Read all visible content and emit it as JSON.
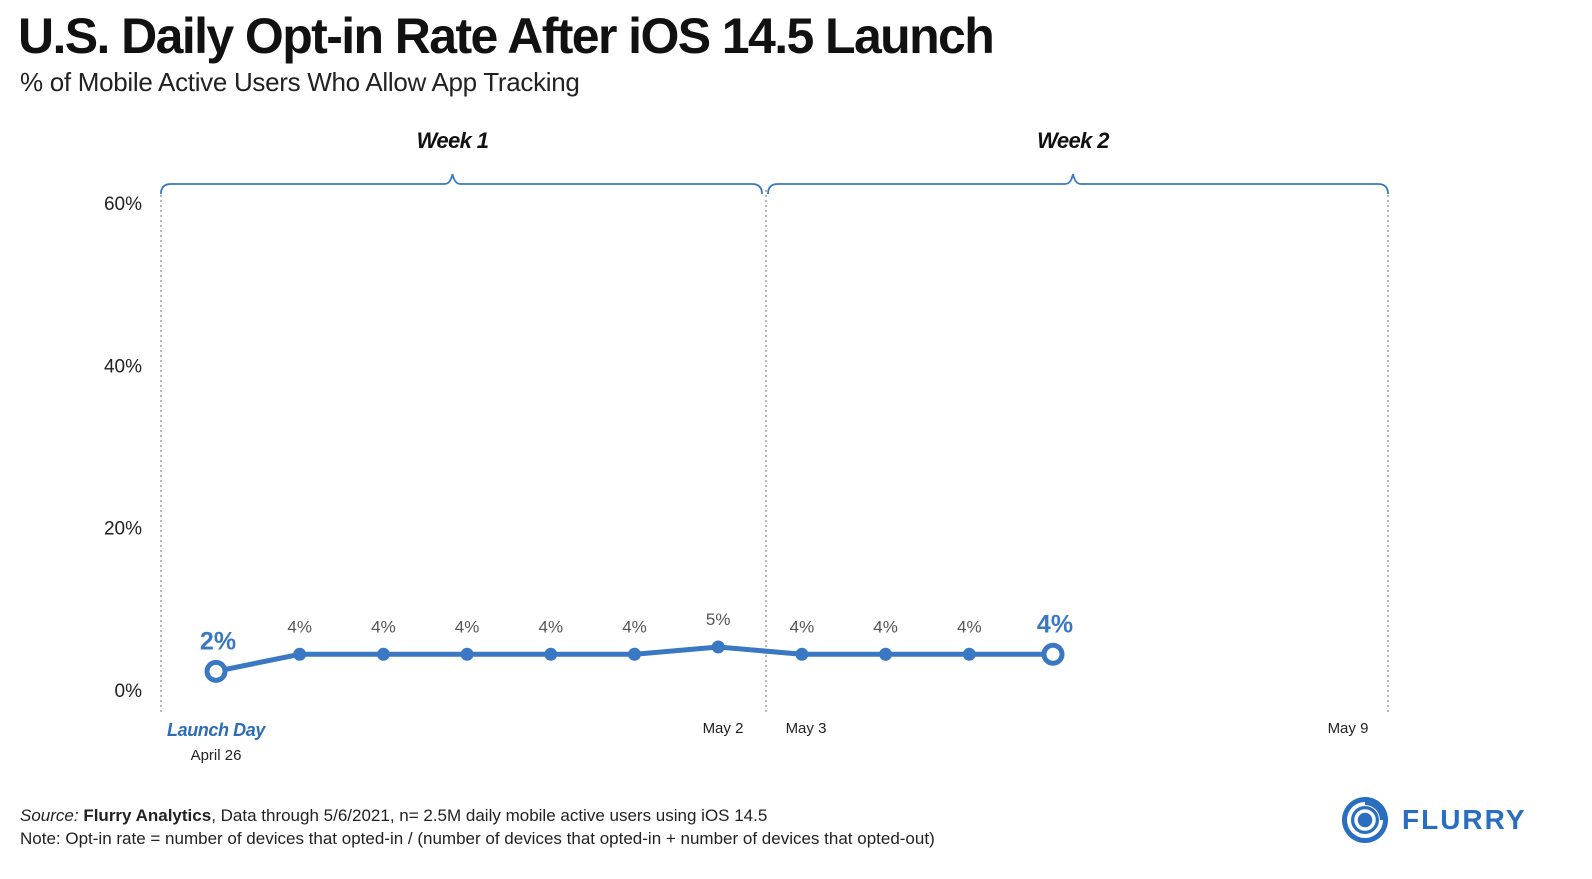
{
  "title": "U.S. Daily Opt-in Rate After iOS 14.5 Launch",
  "subtitle": "% of Mobile Active Users Who Allow App Tracking",
  "chart_data": {
    "type": "line",
    "title": "U.S. Daily Opt-in Rate After iOS 14.5 Launch",
    "subtitle": "% of Mobile Active Users Who Allow App Tracking",
    "xlabel": "",
    "ylabel": "",
    "ylim": [
      0,
      60
    ],
    "yticks": [
      0,
      20,
      40,
      60
    ],
    "ytick_labels": [
      "0%",
      "20%",
      "40%",
      "60%"
    ],
    "x_range": [
      1,
      14
    ],
    "x": [
      1,
      2,
      3,
      4,
      5,
      6,
      7,
      8,
      9,
      10,
      11
    ],
    "series": [
      {
        "name": "",
        "color": "#3a78c4",
        "values": [
          2.3,
          4.4,
          4.4,
          4.4,
          4.4,
          4.4,
          5.3,
          4.4,
          4.4,
          4.4,
          4.4
        ],
        "labels": [
          "2%",
          "4%",
          "4%",
          "4%",
          "4%",
          "4%",
          "5%",
          "4%",
          "4%",
          "4%",
          "4%"
        ]
      }
    ],
    "highlight_indices": [
      0,
      10
    ],
    "x_tick_labels": [
      {
        "x": 1,
        "label": "Launch Day",
        "sublabel": "April 26",
        "style": "highlight"
      },
      {
        "x": 7,
        "label": "May 2"
      },
      {
        "x": 8,
        "label": "May 3"
      },
      {
        "x": 14,
        "label": "May 9"
      }
    ],
    "periods": [
      {
        "label": "Week 1",
        "from": 1,
        "to": 7
      },
      {
        "label": "Week 2",
        "from": 8,
        "to": 14
      }
    ],
    "grid": false,
    "accent_color": "#3a78c4",
    "highlight_label_color": "#2d6db8"
  },
  "footer": {
    "source_label": "Source:",
    "source_name": "Flurry Analytics",
    "source_rest": ", Data through 5/6/2021, n= 2.5M daily mobile active users using iOS 14.5",
    "note": "Note: Opt-in rate = number of devices that opted-in / (number of devices that opted-in + number of devices that opted-out)"
  },
  "logo": {
    "text": "FLURRY",
    "icon": "flurry-logo-icon",
    "color": "#2a6ec1"
  }
}
